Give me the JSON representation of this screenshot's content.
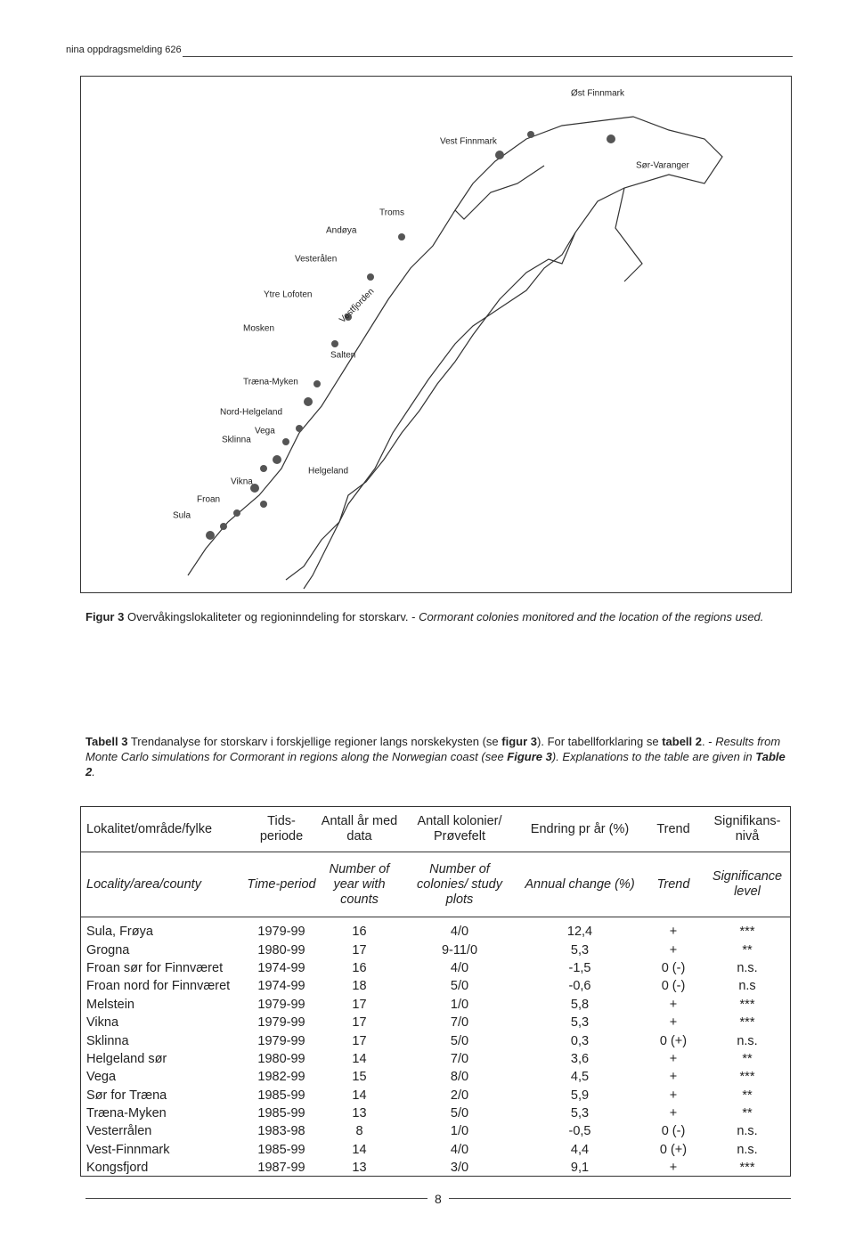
{
  "header": {
    "title": "nina oppdragsmelding 626"
  },
  "figure": {
    "map_labels": [
      "Øst Finnmark",
      "Vest Finnmark",
      "Sør-Varanger",
      "Troms",
      "Andøya",
      "Vesterålen",
      "Ytre Lofoten",
      "Mosken",
      "Vestfjorden",
      "Salten",
      "Træna-Myken",
      "Nord-Helgeland",
      "Vega",
      "Sklinna",
      "Vikna",
      "Helgeland",
      "Froan",
      "Sula"
    ],
    "caption": [
      "Figur 3",
      "Overvåkingslokaliteter og regioninndeling for storskarv. -",
      "Cormorant colonies monitored and the location of the regions used."
    ]
  },
  "table": {
    "caption": [
      "Tabell 3",
      "Trendanalyse for storskarv i forskjellige regioner langs norskekysten (se",
      "figur 3",
      "). For tabellforklaring se",
      "tabell 2",
      ". -",
      "Results from Monte Carlo simulations for Cormorant in regions along the Norwegian coast (see",
      "Figure 3",
      "). Explanations to the table are given in",
      "Table 2",
      "."
    ],
    "header_no": [
      "Lokalitet/område/fylke",
      "Tids-periode",
      "Antall år med data",
      "Antall kolonier/ Prøvefelt",
      "Endring pr år (%)",
      "Trend",
      "Signifikans-nivå"
    ],
    "header_en": [
      "Locality/area/county",
      "Time-period",
      "Number of year with counts",
      "Number of colonies/ study plots",
      "Annual change (%)",
      "Trend",
      "Significance level"
    ],
    "rows": [
      [
        "Sula, Frøya",
        "1979-99",
        "16",
        "4/0",
        "12,4",
        "+",
        "***"
      ],
      [
        "Grogna",
        "1980-99",
        "17",
        "9-11/0",
        "5,3",
        "+",
        "**"
      ],
      [
        "Froan sør for Finnværet",
        "1974-99",
        "16",
        "4/0",
        "-1,5",
        "0 (-)",
        "n.s."
      ],
      [
        "Froan nord for Finnværet",
        "1974-99",
        "18",
        "5/0",
        "-0,6",
        "0 (-)",
        "n.s"
      ],
      [
        "Melstein",
        "1979-99",
        "17",
        "1/0",
        "5,8",
        "+",
        "***"
      ],
      [
        "Vikna",
        "1979-99",
        "17",
        "7/0",
        "5,3",
        "+",
        "***"
      ],
      [
        "Sklinna",
        "1979-99",
        "17",
        "5/0",
        "0,3",
        "0 (+)",
        "n.s."
      ],
      [
        "Helgeland sør",
        "1980-99",
        "14",
        "7/0",
        "3,6",
        "+",
        "**"
      ],
      [
        "Vega",
        "1982-99",
        "15",
        "8/0",
        "4,5",
        "+",
        "***"
      ],
      [
        "Sør for Træna",
        "1985-99",
        "14",
        "2/0",
        "5,9",
        "+",
        "**"
      ],
      [
        "Træna-Myken",
        "1985-99",
        "13",
        "5/0",
        "5,3",
        "+",
        "**"
      ],
      [
        "Vesterrålen",
        "1983-98",
        "8",
        "1/0",
        "-0,5",
        "0 (-)",
        "n.s."
      ],
      [
        "Vest-Finnmark",
        "1985-99",
        "14",
        "4/0",
        "4,4",
        "0 (+)",
        "n.s."
      ],
      [
        "Kongsfjord",
        "1987-99",
        "13",
        "3/0",
        "9,1",
        "+",
        "***"
      ]
    ]
  },
  "footer": {
    "page": "8"
  }
}
